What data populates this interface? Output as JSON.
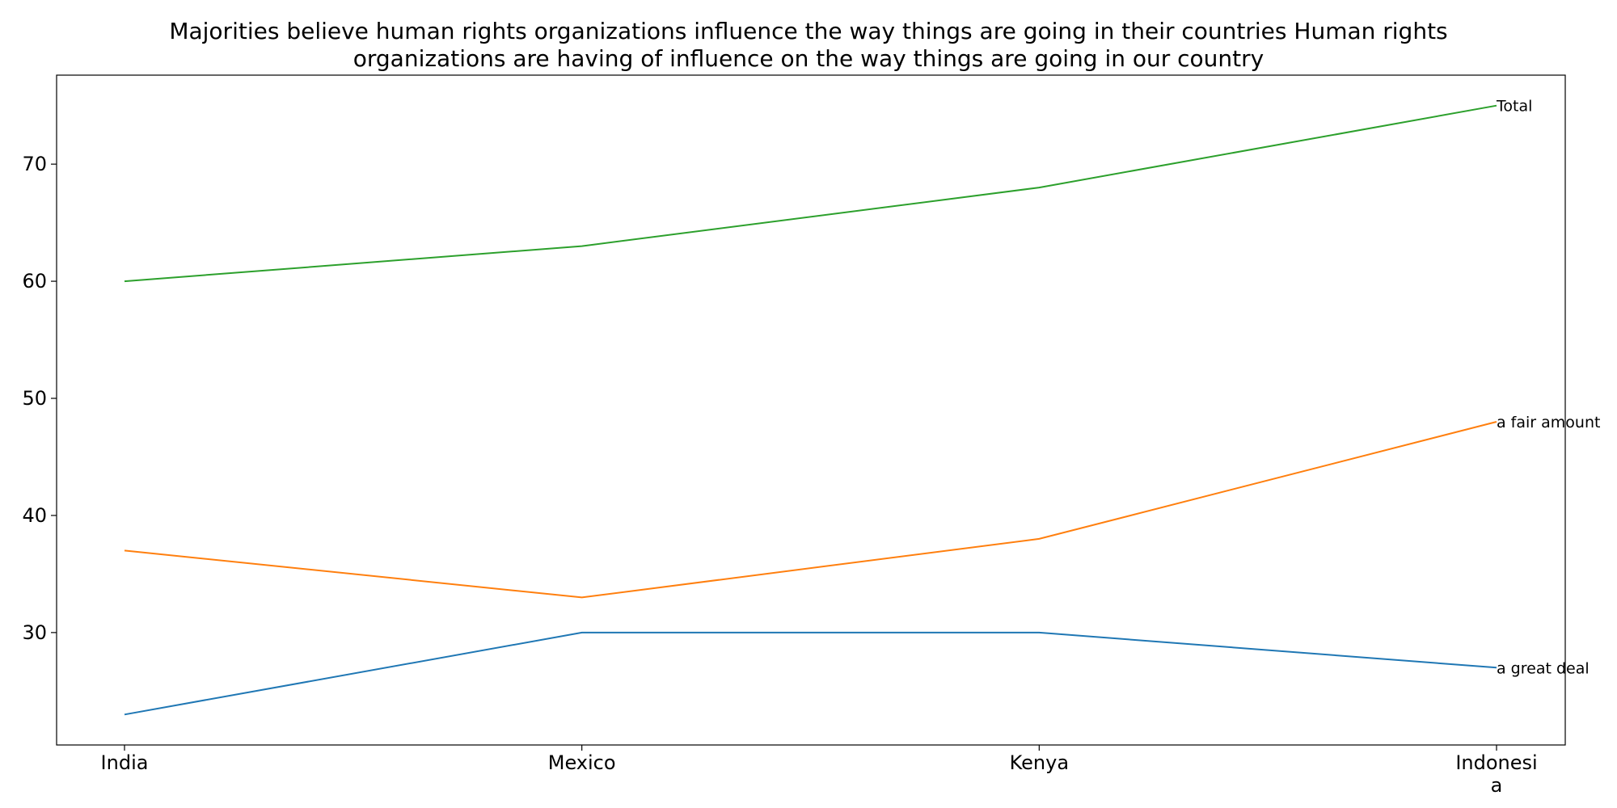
{
  "chart_data": {
    "type": "line",
    "title_lines": [
      "Majorities believe human rights organizations influence the way things are going in their countries Human rights",
      "organizations are having of influence on the way things are going in our country"
    ],
    "categories": [
      [
        "India"
      ],
      [
        "Mexico"
      ],
      [
        "Kenya"
      ],
      [
        "Indonesi",
        "a"
      ]
    ],
    "series": [
      {
        "name": "a great deal",
        "color": "#1f77b4",
        "values": [
          23,
          30,
          30,
          27
        ]
      },
      {
        "name": "a fair amount",
        "color": "#ff7f0e",
        "values": [
          37,
          33,
          38,
          48
        ]
      },
      {
        "name": "Total",
        "color": "#2ca02c",
        "values": [
          60,
          63,
          68,
          75
        ]
      }
    ],
    "y_ticks": [
      30,
      40,
      50,
      60,
      70
    ],
    "ylim": [
      20.4,
      77.6
    ],
    "xlabel": "",
    "ylabel": "",
    "grid": false,
    "legend": "none (series names labeled at line ends)"
  }
}
